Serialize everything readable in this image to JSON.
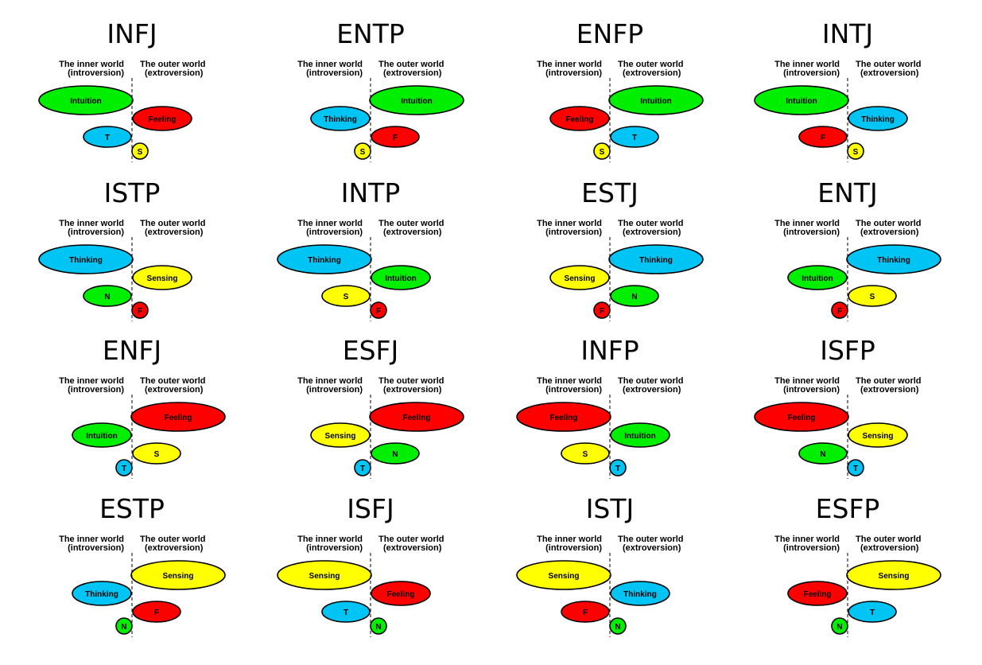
{
  "labels": {
    "inner_line1": "The inner world",
    "inner_line2": "(introversion)",
    "outer_line1": "The outer world",
    "outer_line2": "(extroversion)"
  },
  "colors": {
    "N": "#00ee00",
    "F": "#ff0000",
    "T": "#00c4f4",
    "S": "#ffff00",
    "outline": "#000000",
    "background": "#ffffff"
  },
  "function_names": {
    "N": "Intuition",
    "F": "Feeling",
    "T": "Thinking",
    "S": "Sensing"
  },
  "types": [
    {
      "name": "INFJ",
      "order": [
        {
          "fn": "N",
          "side": "in"
        },
        {
          "fn": "F",
          "side": "out"
        },
        {
          "fn": "T",
          "side": "in"
        },
        {
          "fn": "S",
          "side": "out"
        }
      ]
    },
    {
      "name": "ENTP",
      "order": [
        {
          "fn": "N",
          "side": "out"
        },
        {
          "fn": "T",
          "side": "in"
        },
        {
          "fn": "F",
          "side": "out"
        },
        {
          "fn": "S",
          "side": "in"
        }
      ]
    },
    {
      "name": "ENFP",
      "order": [
        {
          "fn": "N",
          "side": "out"
        },
        {
          "fn": "F",
          "side": "in"
        },
        {
          "fn": "T",
          "side": "out"
        },
        {
          "fn": "S",
          "side": "in"
        }
      ]
    },
    {
      "name": "INTJ",
      "order": [
        {
          "fn": "N",
          "side": "in"
        },
        {
          "fn": "T",
          "side": "out"
        },
        {
          "fn": "F",
          "side": "in"
        },
        {
          "fn": "S",
          "side": "out"
        }
      ]
    },
    {
      "name": "ISTP",
      "order": [
        {
          "fn": "T",
          "side": "in"
        },
        {
          "fn": "S",
          "side": "out"
        },
        {
          "fn": "N",
          "side": "in"
        },
        {
          "fn": "F",
          "side": "out"
        }
      ]
    },
    {
      "name": "INTP",
      "order": [
        {
          "fn": "T",
          "side": "in"
        },
        {
          "fn": "N",
          "side": "out"
        },
        {
          "fn": "S",
          "side": "in"
        },
        {
          "fn": "F",
          "side": "out"
        }
      ]
    },
    {
      "name": "ESTJ",
      "order": [
        {
          "fn": "T",
          "side": "out"
        },
        {
          "fn": "S",
          "side": "in"
        },
        {
          "fn": "N",
          "side": "out"
        },
        {
          "fn": "F",
          "side": "in"
        }
      ]
    },
    {
      "name": "ENTJ",
      "order": [
        {
          "fn": "T",
          "side": "out"
        },
        {
          "fn": "N",
          "side": "in"
        },
        {
          "fn": "S",
          "side": "out"
        },
        {
          "fn": "F",
          "side": "in"
        }
      ]
    },
    {
      "name": "ENFJ",
      "order": [
        {
          "fn": "F",
          "side": "out"
        },
        {
          "fn": "N",
          "side": "in"
        },
        {
          "fn": "S",
          "side": "out"
        },
        {
          "fn": "T",
          "side": "in"
        }
      ]
    },
    {
      "name": "ESFJ",
      "order": [
        {
          "fn": "F",
          "side": "out"
        },
        {
          "fn": "S",
          "side": "in"
        },
        {
          "fn": "N",
          "side": "out"
        },
        {
          "fn": "T",
          "side": "in"
        }
      ]
    },
    {
      "name": "INFP",
      "order": [
        {
          "fn": "F",
          "side": "in"
        },
        {
          "fn": "N",
          "side": "out"
        },
        {
          "fn": "S",
          "side": "in"
        },
        {
          "fn": "T",
          "side": "out"
        }
      ]
    },
    {
      "name": "ISFP",
      "order": [
        {
          "fn": "F",
          "side": "in"
        },
        {
          "fn": "S",
          "side": "out"
        },
        {
          "fn": "N",
          "side": "in"
        },
        {
          "fn": "T",
          "side": "out"
        }
      ]
    },
    {
      "name": "ESTP",
      "order": [
        {
          "fn": "S",
          "side": "out"
        },
        {
          "fn": "T",
          "side": "in"
        },
        {
          "fn": "F",
          "side": "out"
        },
        {
          "fn": "N",
          "side": "in"
        }
      ]
    },
    {
      "name": "ISFJ",
      "order": [
        {
          "fn": "S",
          "side": "in"
        },
        {
          "fn": "F",
          "side": "out"
        },
        {
          "fn": "T",
          "side": "in"
        },
        {
          "fn": "N",
          "side": "out"
        }
      ]
    },
    {
      "name": "ISTJ",
      "order": [
        {
          "fn": "S",
          "side": "in"
        },
        {
          "fn": "T",
          "side": "out"
        },
        {
          "fn": "F",
          "side": "in"
        },
        {
          "fn": "N",
          "side": "out"
        }
      ]
    },
    {
      "name": "ESFP",
      "order": [
        {
          "fn": "S",
          "side": "out"
        },
        {
          "fn": "F",
          "side": "in"
        },
        {
          "fn": "T",
          "side": "out"
        },
        {
          "fn": "N",
          "side": "in"
        }
      ]
    }
  ]
}
